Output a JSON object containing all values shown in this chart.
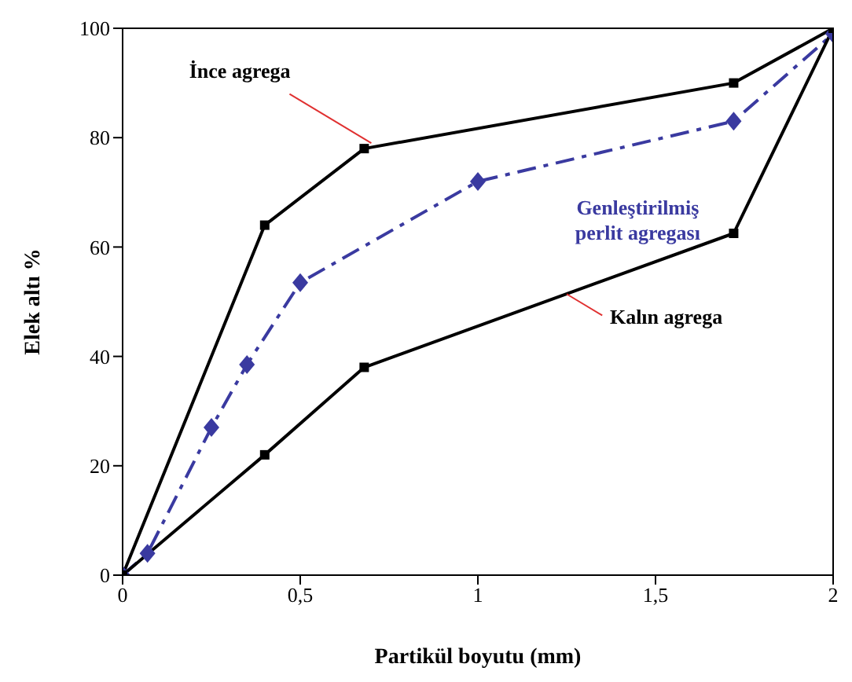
{
  "chart_data": {
    "type": "line",
    "xlabel": "Partikül boyutu (mm)",
    "ylabel": "Elek altı %",
    "xlim": [
      0,
      2
    ],
    "xticks": [
      0,
      {
        "value": 0.5,
        "label": "0,5"
      },
      1,
      {
        "value": 1.5,
        "label": "1,5"
      },
      2
    ],
    "ylim": [
      0,
      100
    ],
    "yticks": [
      0,
      20,
      40,
      60,
      80,
      100
    ],
    "series": [
      {
        "name": "İnce agrega",
        "color": "#000000",
        "marker": "square",
        "line_style": "solid",
        "x": [
          0,
          0.4,
          0.68,
          1.72,
          2
        ],
        "values": [
          0,
          64,
          78,
          90,
          100
        ]
      },
      {
        "name": "Genleştirilmiş perlit agregası",
        "color": "#3a3aa0",
        "marker": "diamond",
        "line_style": "dashed",
        "x": [
          0,
          0.07,
          0.25,
          0.35,
          0.5,
          1,
          1.72,
          2
        ],
        "values": [
          0,
          4,
          27,
          38.5,
          53.5,
          72,
          83,
          99
        ]
      },
      {
        "name": "Kalın agrega",
        "color": "#000000",
        "marker": "square",
        "line_style": "solid",
        "x": [
          0,
          0.4,
          0.68,
          1.72,
          2
        ],
        "values": [
          0,
          22,
          38,
          62.5,
          100
        ]
      }
    ]
  }
}
